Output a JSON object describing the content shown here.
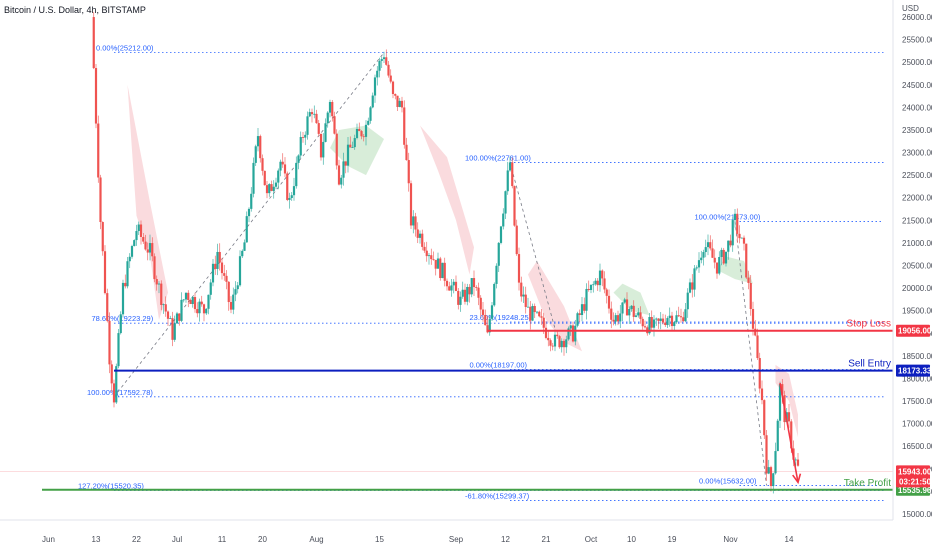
{
  "header": {
    "title": "Bitcoin / U.S. Dollar, 4h, BITSTAMP",
    "currency": "USD"
  },
  "colors": {
    "up": "#26a69a",
    "down": "#ef5350",
    "fib": "#2962ff",
    "stop": "#f23645",
    "entry": "#0c1fbf",
    "take": "#43a047",
    "cloud_red": "#f8c8cc",
    "cloud_green": "#c8e6c9"
  },
  "chart_data": {
    "type": "candlestick",
    "ylim": [
      14800,
      26200
    ],
    "y_ticks": [
      15000,
      15500,
      16000,
      16500,
      17000,
      17500,
      18000,
      18500,
      19000,
      19500,
      20000,
      20500,
      21000,
      21500,
      22000,
      22500,
      23000,
      23500,
      24000,
      24500,
      25000,
      25500,
      26000
    ],
    "x_labels": [
      {
        "label": "Jun",
        "t": 0
      },
      {
        "label": "13",
        "t": 12
      },
      {
        "label": "22",
        "t": 21
      },
      {
        "label": "Jul",
        "t": 30
      },
      {
        "label": "11",
        "t": 40
      },
      {
        "label": "20",
        "t": 49
      },
      {
        "label": "Aug",
        "t": 61
      },
      {
        "label": "15",
        "t": 75
      },
      {
        "label": "Sep",
        "t": 92
      },
      {
        "label": "12",
        "t": 103
      },
      {
        "label": "21",
        "t": 112
      },
      {
        "label": "Oct",
        "t": 122
      },
      {
        "label": "10",
        "t": 131
      },
      {
        "label": "19",
        "t": 140
      },
      {
        "label": "Nov",
        "t": 153
      },
      {
        "label": "14",
        "t": 166
      }
    ],
    "path": [
      [
        11,
        26000
      ],
      [
        13,
        21500
      ],
      [
        15,
        18500
      ],
      [
        16,
        17600
      ],
      [
        18,
        20000
      ],
      [
        21,
        21300
      ],
      [
        24,
        20800
      ],
      [
        26,
        20000
      ],
      [
        29,
        19000
      ],
      [
        32,
        19900
      ],
      [
        36,
        19500
      ],
      [
        39,
        20800
      ],
      [
        42,
        19500
      ],
      [
        45,
        21000
      ],
      [
        48,
        23400
      ],
      [
        50,
        22000
      ],
      [
        53,
        22800
      ],
      [
        55,
        21900
      ],
      [
        58,
        23400
      ],
      [
        60,
        24000
      ],
      [
        62,
        23000
      ],
      [
        64,
        24200
      ],
      [
        66,
        22500
      ],
      [
        69,
        23200
      ],
      [
        72,
        23600
      ],
      [
        74,
        24700
      ],
      [
        76,
        25212
      ],
      [
        78,
        24200
      ],
      [
        80,
        24000
      ],
      [
        82,
        21500
      ],
      [
        85,
        21000
      ],
      [
        88,
        20500
      ],
      [
        90,
        20200
      ],
      [
        93,
        19700
      ],
      [
        96,
        20100
      ],
      [
        99,
        18900
      ],
      [
        102,
        21500
      ],
      [
        104,
        22781
      ],
      [
        106,
        20000
      ],
      [
        108,
        19500
      ],
      [
        111,
        19200
      ],
      [
        114,
        18800
      ],
      [
        118,
        19000
      ],
      [
        121,
        19800
      ],
      [
        124,
        20300
      ],
      [
        127,
        19300
      ],
      [
        130,
        19600
      ],
      [
        133,
        19300
      ],
      [
        136,
        19100
      ],
      [
        139,
        19400
      ],
      [
        142,
        19300
      ],
      [
        145,
        20300
      ],
      [
        147,
        21000
      ],
      [
        150,
        20500
      ],
      [
        152,
        20800
      ],
      [
        154,
        21473
      ],
      [
        156,
        20800
      ],
      [
        158,
        19200
      ],
      [
        160,
        17500
      ],
      [
        161,
        16100
      ],
      [
        162,
        15632
      ],
      [
        163,
        16500
      ],
      [
        164,
        17800
      ],
      [
        165,
        17200
      ],
      [
        166,
        16900
      ],
      [
        167,
        16300
      ],
      [
        168,
        16000
      ]
    ],
    "cloud_red": [
      [
        [
          19,
          24500
        ],
        [
          21,
          21600
        ],
        [
          24,
          20700
        ],
        [
          26,
          19300
        ],
        [
          28,
          19900
        ],
        [
          24,
          21900
        ]
      ],
      [
        [
          84,
          23600
        ],
        [
          88,
          22600
        ],
        [
          92,
          21500
        ],
        [
          95,
          20300
        ],
        [
          96,
          20900
        ],
        [
          90,
          22900
        ]
      ],
      [
        [
          108,
          20300
        ],
        [
          112,
          19300
        ],
        [
          116,
          18800
        ],
        [
          120,
          18600
        ],
        [
          116,
          19600
        ],
        [
          110,
          20600
        ]
      ],
      [
        [
          163,
          18300
        ],
        [
          166,
          18100
        ],
        [
          168,
          17200
        ],
        [
          168,
          16700
        ],
        [
          166,
          17500
        ],
        [
          163,
          17900
        ]
      ]
    ],
    "cloud_green": [
      [
        [
          64,
          23100
        ],
        [
          68,
          22700
        ],
        [
          72,
          22500
        ],
        [
          76,
          23300
        ],
        [
          72,
          23600
        ],
        [
          66,
          23500
        ]
      ],
      [
        [
          127,
          19900
        ],
        [
          131,
          19500
        ],
        [
          135,
          19400
        ],
        [
          133,
          19900
        ],
        [
          129,
          20100
        ]
      ],
      [
        [
          150,
          20400
        ],
        [
          154,
          20200
        ],
        [
          158,
          20100
        ],
        [
          156,
          20600
        ],
        [
          152,
          20700
        ]
      ]
    ],
    "fib_levels": [
      {
        "label": "0.00%(25212.00)",
        "price": 25212,
        "t0": 16,
        "t1": 187,
        "label_t": 12
      },
      {
        "label": "78.60%(19223.29)",
        "price": 19223.29,
        "t0": 16,
        "t1": 187,
        "label_t": 11
      },
      {
        "label": "100.00%(17592.78)",
        "price": 17592.78,
        "t0": 16,
        "t1": 187,
        "label_t": 10
      },
      {
        "label": "127.20%(15520.35)",
        "price": 15520.35,
        "t0": 16,
        "t1": 187,
        "label_t": 8
      },
      {
        "label": "100.00%(22781.00)",
        "price": 22781,
        "t0": 104,
        "t1": 187,
        "label_t": 94
      },
      {
        "label": "23.60%(19248.25)",
        "price": 19248.25,
        "t0": 104,
        "t1": 187,
        "label_t": 95
      },
      {
        "label": "0.00%(18197.00)",
        "price": 18197,
        "t0": 104,
        "t1": 187,
        "label_t": 95
      },
      {
        "label": "100.00%(21473.00)",
        "price": 21473,
        "t0": 155,
        "t1": 187,
        "label_t": 145
      },
      {
        "label": "0.00%(15632.00)",
        "price": 15632,
        "t0": 155,
        "t1": 187,
        "label_t": 146
      },
      {
        "label": "-61.80%(15299.37)",
        "price": 15299.37,
        "t0": 104,
        "t1": 187,
        "label_t": 94
      }
    ],
    "trend_lines": [
      {
        "from": [
          16,
          17593
        ],
        "to": [
          76,
          25212
        ]
      },
      {
        "from": [
          104,
          22781
        ],
        "to": [
          114,
          19100
        ]
      },
      {
        "from": [
          154,
          21473
        ],
        "to": [
          161,
          15632
        ]
      }
    ],
    "levels": [
      {
        "name": "Stop Loss",
        "price": 19056,
        "badge": "19056.00",
        "t0": 99,
        "color": "#f23645"
      },
      {
        "name": "Sell Entry",
        "price": 18173.33,
        "badge": "18173.33",
        "t0": 16,
        "color": "#0c1fbf"
      },
      {
        "name": "Take Profit",
        "price": 15535.96,
        "badge": "15535.96",
        "t0": 0,
        "color": "#43a047"
      }
    ],
    "current_price": {
      "badge": "15943.00",
      "countdown": "03:21:50",
      "price": 15943
    },
    "arrow": {
      "from": [
        164,
        17900
      ],
      "to": [
        168,
        15700
      ]
    }
  }
}
